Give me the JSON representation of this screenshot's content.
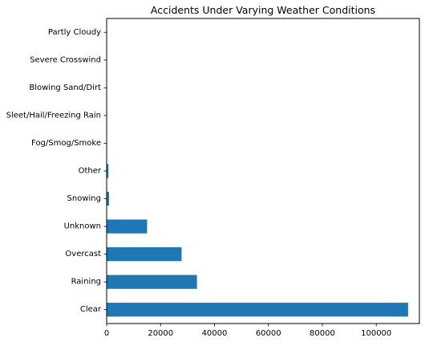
{
  "chart_data": {
    "type": "bar",
    "orientation": "horizontal",
    "title": "Accidents Under Varying Weather Conditions",
    "xlabel": "",
    "ylabel": "",
    "categories": [
      "Partly Cloudy",
      "Severe Crosswind",
      "Blowing Sand/Dirt",
      "Sleet/Hail/Freezing Rain",
      "Fog/Smog/Smoke",
      "Other",
      "Snowing",
      "Unknown",
      "Overcast",
      "Raining",
      "Clear"
    ],
    "values": [
      5,
      10,
      20,
      60,
      100,
      650,
      900,
      15000,
      27800,
      33500,
      111800
    ],
    "xlim": [
      0,
      116000
    ],
    "xticks": [
      0,
      20000,
      40000,
      60000,
      80000,
      100000
    ],
    "xtick_labels": [
      "0",
      "20000",
      "40000",
      "60000",
      "80000",
      "100000"
    ],
    "bar_color": "#1f77b4",
    "grid": false,
    "legend": "none"
  }
}
